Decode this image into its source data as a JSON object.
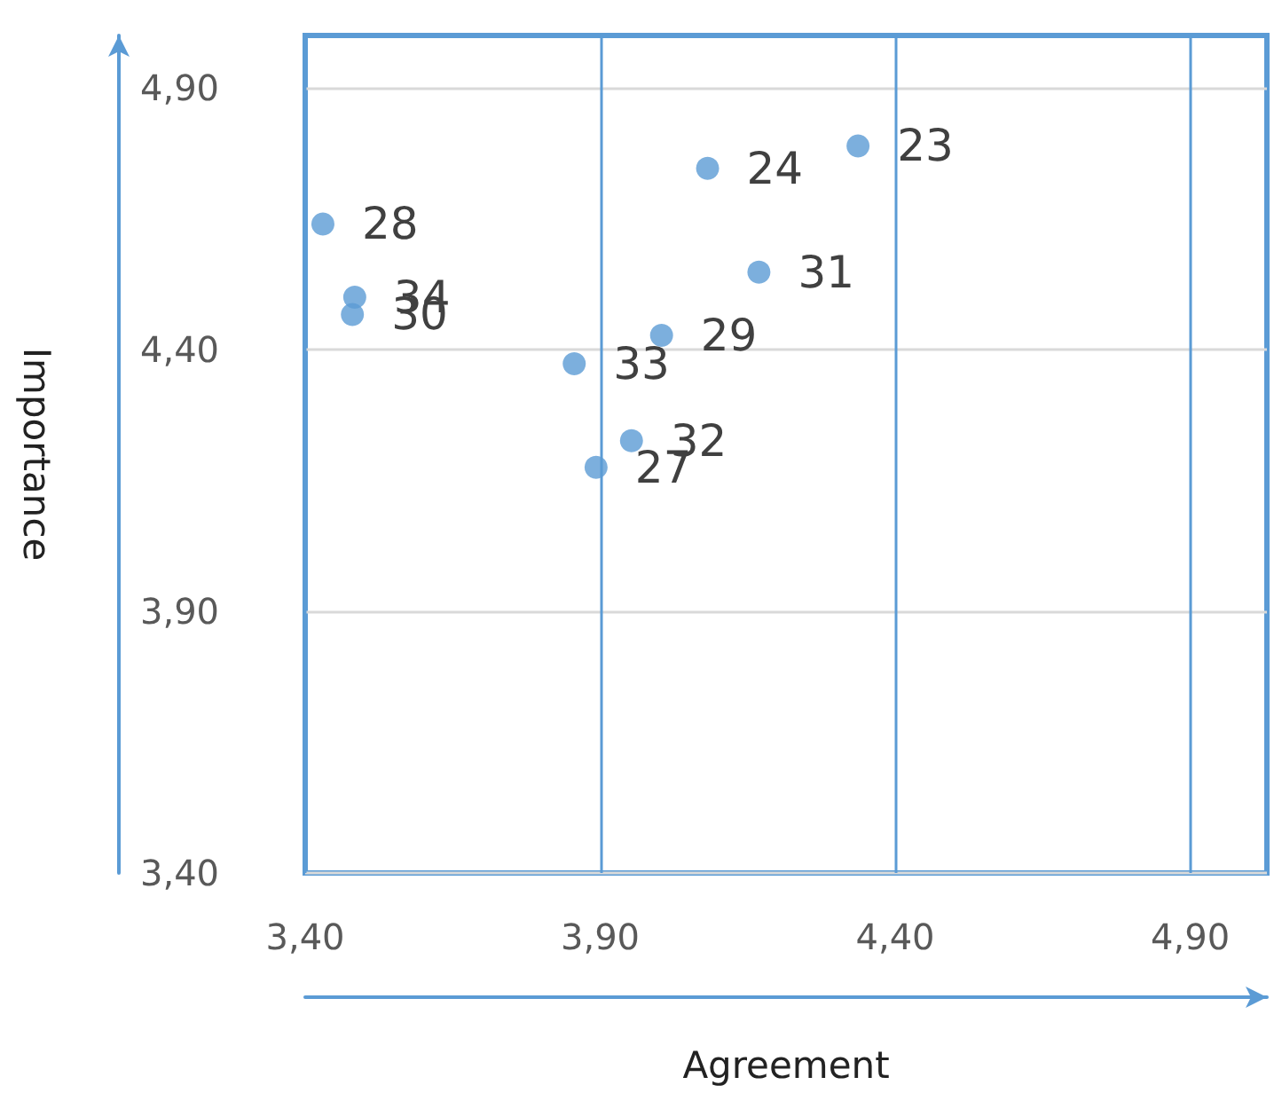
{
  "chart_data": {
    "type": "scatter",
    "xlabel": "Agreement",
    "ylabel": "Importance",
    "x": [
      4.337,
      4.082,
      3.893,
      3.43,
      4.004,
      3.48,
      4.169,
      3.953,
      3.856,
      3.484
    ],
    "series": [
      {
        "color": "#5b9bd5",
        "values": [
          4.789,
          4.746,
          4.175,
          4.64,
          4.427,
          4.467,
          4.548,
          4.226,
          4.373,
          4.5
        ]
      }
    ],
    "annotations": [
      {
        "text": "23",
        "x": 4.337,
        "y": 4.789
      },
      {
        "text": "24",
        "x": 4.082,
        "y": 4.746
      },
      {
        "text": "27",
        "x": 3.893,
        "y": 4.175
      },
      {
        "text": "28",
        "x": 3.43,
        "y": 4.64
      },
      {
        "text": "29",
        "x": 4.004,
        "y": 4.427
      },
      {
        "text": "30",
        "x": 3.48,
        "y": 4.467
      },
      {
        "text": "31",
        "x": 4.169,
        "y": 4.548
      },
      {
        "text": "32",
        "x": 3.953,
        "y": 4.226
      },
      {
        "text": "33",
        "x": 3.856,
        "y": 4.373
      },
      {
        "text": "34",
        "x": 3.484,
        "y": 4.5
      }
    ],
    "xlim": [
      3.4,
      5.03
    ],
    "ylim": [
      3.4,
      5.0
    ],
    "xticks": [
      {
        "value": 3.4,
        "label": "3,40"
      },
      {
        "value": 3.9,
        "label": "3,90"
      },
      {
        "value": 4.4,
        "label": "4,40"
      },
      {
        "value": 4.9,
        "label": "4,90"
      }
    ],
    "yticks": [
      {
        "value": 3.4,
        "label": "3,40"
      },
      {
        "value": 3.9,
        "label": "3,90"
      },
      {
        "value": 4.4,
        "label": "4,40"
      },
      {
        "value": 4.9,
        "label": "4,90"
      }
    ],
    "grid": true,
    "marker": "circle"
  }
}
